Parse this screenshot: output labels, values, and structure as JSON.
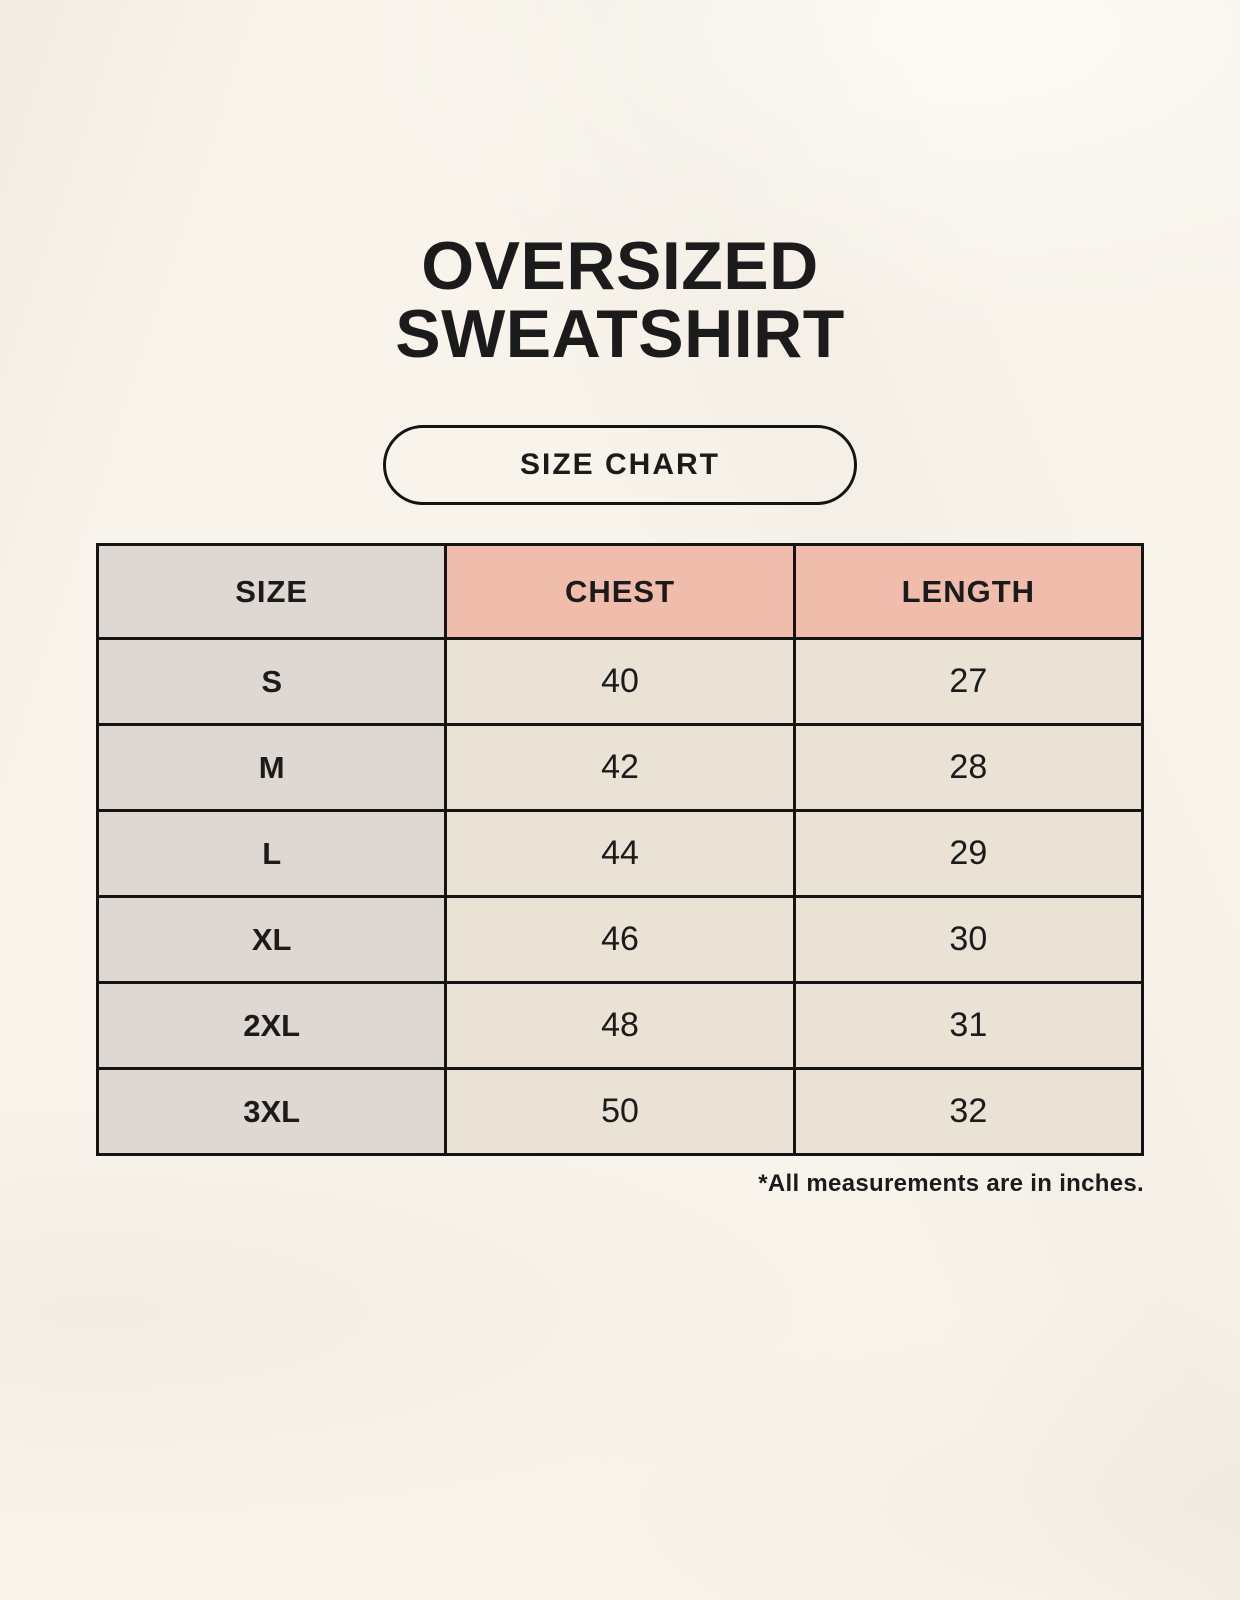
{
  "page": {
    "title_lines": [
      "OVERSIZED",
      "SWEATSHIRT"
    ],
    "button_label": "SIZE CHART",
    "footnote": "*All measurements are in inches."
  },
  "table": {
    "headers": [
      "SIZE",
      "CHEST",
      "LENGTH"
    ],
    "rows": [
      {
        "size": "S",
        "chest": "40",
        "length": "27"
      },
      {
        "size": "M",
        "chest": "42",
        "length": "28"
      },
      {
        "size": "L",
        "chest": "44",
        "length": "29"
      },
      {
        "size": "XL",
        "chest": "46",
        "length": "30"
      },
      {
        "size": "2XL",
        "chest": "48",
        "length": "31"
      },
      {
        "size": "3XL",
        "chest": "50",
        "length": "32"
      }
    ],
    "units": "inches"
  },
  "colors": {
    "background": "#f8f4ec",
    "header_accent": "#f0bcab",
    "size_column": "#ded7d2",
    "cell_cream": "#e9e2d5",
    "border": "#141414",
    "text": "#1b1b1b"
  }
}
